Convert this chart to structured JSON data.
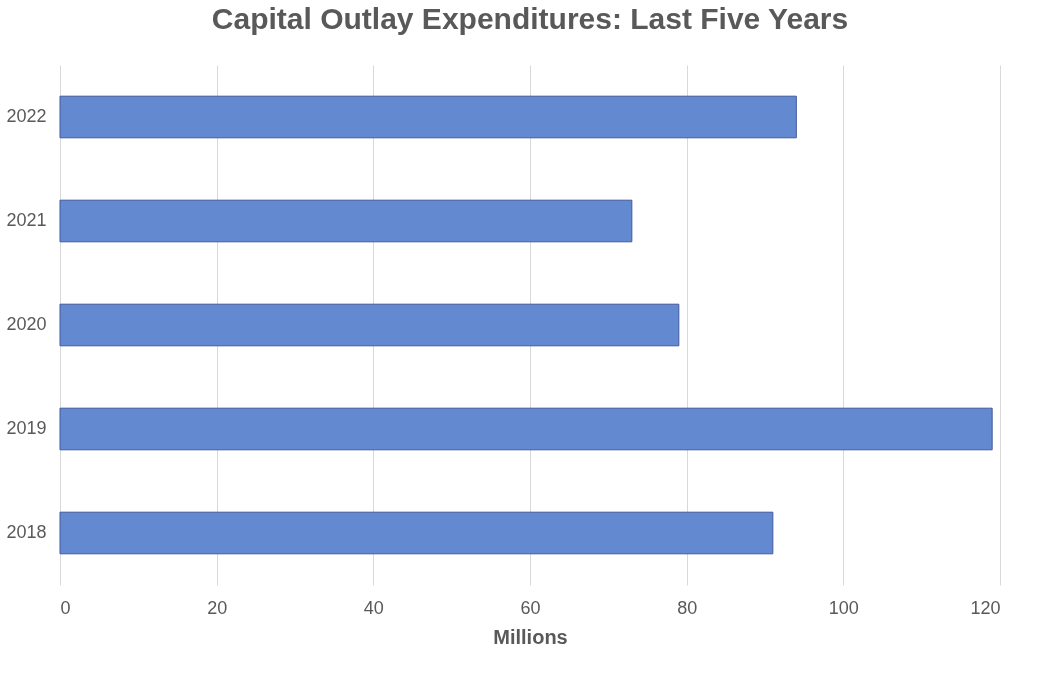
{
  "chart_data": {
    "type": "bar",
    "orientation": "horizontal",
    "title": "Capital Outlay Expenditures: Last Five Years",
    "xlabel": "Millions",
    "categories": [
      "2022",
      "2021",
      "2020",
      "2019",
      "2018"
    ],
    "values": [
      94,
      73,
      79,
      119,
      91
    ],
    "color": "#6389d0",
    "xlim": [
      0,
      120
    ],
    "xticks": [
      0,
      20,
      40,
      60,
      80,
      100,
      120
    ],
    "grid": "x"
  }
}
